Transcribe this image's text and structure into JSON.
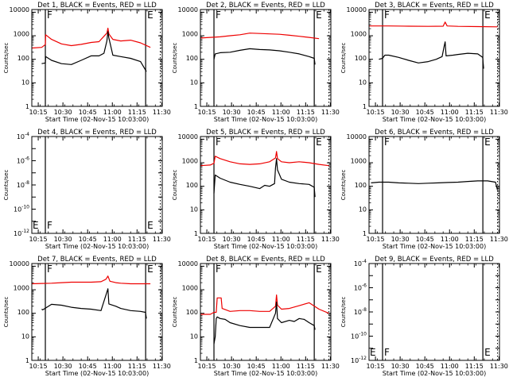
{
  "colors": {
    "events": "#000000",
    "lld": "#ee0000",
    "axis": "#000000"
  },
  "chart_data": [
    {
      "type": "line",
      "title": "Det 1, BLACK = Events, RED = LLD",
      "xlabel": "Start Time (02-Nov-15 10:03:00)",
      "ylabel": "Counts/sec",
      "yscale": "log",
      "ylim": [
        1,
        13000
      ],
      "yticks": [
        "1",
        "10",
        "100",
        "1000",
        "10000"
      ],
      "xlim": [
        10.1,
        11.42
      ],
      "xticks": [
        "10:15",
        "10:30",
        "10:45",
        "11:00",
        "11:15",
        "11:30"
      ],
      "markers": [
        {
          "x": 10.237,
          "label": "F",
          "style": "solid"
        },
        {
          "x": 11.252,
          "label": "E",
          "style": "solid"
        },
        {
          "x": 11.4,
          "label": "",
          "style": "dotted"
        }
      ],
      "series": [
        {
          "name": "RED = LLD",
          "x": [
            10.1,
            10.2,
            10.237,
            10.24,
            10.3,
            10.4,
            10.5,
            10.6,
            10.7,
            10.78,
            10.83,
            10.86,
            10.87,
            10.88,
            10.92,
            11.0,
            11.1,
            11.2,
            11.3
          ],
          "y": [
            300,
            320,
            420,
            1100,
            700,
            450,
            380,
            430,
            520,
            560,
            950,
            1300,
            2100,
            1200,
            700,
            600,
            650,
            500,
            320
          ]
        },
        {
          "name": "BLACK = Events",
          "x": [
            10.2,
            10.237,
            10.24,
            10.3,
            10.4,
            10.5,
            10.6,
            10.7,
            10.78,
            10.83,
            10.86,
            10.87,
            10.88,
            10.92,
            11.0,
            11.1,
            11.2,
            11.26
          ],
          "y": [
            65,
            70,
            130,
            90,
            65,
            60,
            90,
            140,
            140,
            180,
            600,
            1500,
            800,
            150,
            130,
            110,
            80,
            30
          ]
        }
      ]
    },
    {
      "type": "line",
      "title": "Det 2, BLACK = Events, RED = LLD",
      "xlabel": "Start Time (02-Nov-15 10:03:00)",
      "ylabel": "Counts/sec",
      "yscale": "log",
      "ylim": [
        1,
        13000
      ],
      "yticks": [
        "1",
        "10",
        "100",
        "1000",
        "10000"
      ],
      "xlim": [
        10.1,
        11.42
      ],
      "xticks": [
        "10:15",
        "10:30",
        "10:45",
        "11:00",
        "11:15",
        "11:30"
      ],
      "markers": [
        {
          "x": 10.237,
          "label": "F",
          "style": "solid"
        },
        {
          "x": 11.252,
          "label": "E",
          "style": "solid"
        },
        {
          "x": 11.4,
          "label": "",
          "style": "dotted"
        }
      ],
      "series": [
        {
          "name": "RED = LLD",
          "x": [
            10.1,
            10.2,
            10.3,
            10.4,
            10.5,
            10.6,
            10.7,
            10.8,
            10.9,
            11.0,
            11.1,
            11.2,
            11.3
          ],
          "y": [
            800,
            850,
            900,
            1000,
            1100,
            1300,
            1250,
            1200,
            1150,
            1050,
            950,
            850,
            750
          ]
        },
        {
          "name": "BLACK = Events",
          "x": [
            10.237,
            10.25,
            10.3,
            10.4,
            10.5,
            10.6,
            10.7,
            10.8,
            10.9,
            11.0,
            11.1,
            11.2,
            11.252,
            11.26
          ],
          "y": [
            100,
            170,
            190,
            200,
            240,
            280,
            260,
            250,
            230,
            200,
            170,
            130,
            110,
            60
          ]
        }
      ]
    },
    {
      "type": "line",
      "title": "Det 3, BLACK = Events, RED = LLD",
      "xlabel": "Start Time (02-Nov-15 10:03:00)",
      "ylabel": "Counts/sec",
      "yscale": "log",
      "ylim": [
        1,
        13000
      ],
      "yticks": [
        "1",
        "10",
        "100",
        "1000",
        "10000"
      ],
      "xlim": [
        10.1,
        11.42
      ],
      "xticks": [
        "10:15",
        "10:30",
        "10:45",
        "11:00",
        "11:15",
        "11:30"
      ],
      "markers": [
        {
          "x": 10.237,
          "label": "F",
          "style": "solid"
        },
        {
          "x": 11.252,
          "label": "E",
          "style": "solid"
        },
        {
          "x": 11.4,
          "label": "",
          "style": "dotted"
        }
      ],
      "series": [
        {
          "name": "RED = LLD",
          "x": [
            10.1,
            10.3,
            10.5,
            10.7,
            10.85,
            10.87,
            10.89,
            11.0,
            11.2,
            11.4
          ],
          "y": [
            2600,
            2600,
            2550,
            2500,
            2550,
            3800,
            2600,
            2500,
            2450,
            2400
          ]
        },
        {
          "name": "BLACK = Events",
          "x": [
            10.2,
            10.237,
            10.26,
            10.3,
            10.4,
            10.5,
            10.6,
            10.7,
            10.78,
            10.84,
            10.86,
            10.87,
            10.88,
            10.95,
            11.0,
            11.1,
            11.2,
            11.25,
            11.26
          ],
          "y": [
            100,
            110,
            150,
            150,
            120,
            90,
            70,
            80,
            100,
            130,
            350,
            550,
            140,
            150,
            160,
            180,
            170,
            120,
            40
          ]
        }
      ]
    },
    {
      "type": "line",
      "title": "Det 4, BLACK = Events, RED = LLD",
      "xlabel": "Start Time (02-Nov-15 10:03:00)",
      "ylabel": "Counts/sec",
      "yscale": "log",
      "ylim": [
        1e-12,
        0.0001
      ],
      "yticks": [
        "10^-12",
        "10^-10",
        "10^-8",
        "10^-6",
        "10^-4"
      ],
      "xlim": [
        10.1,
        11.42
      ],
      "xticks": [
        "10:15",
        "10:30",
        "10:45",
        "11:00",
        "11:15",
        "11:30"
      ],
      "markers": [
        {
          "x": 10.237,
          "label": "F",
          "style": "solid"
        },
        {
          "x": 11.252,
          "label": "E",
          "style": "solid"
        },
        {
          "x": 11.4,
          "label": "",
          "style": "dotted"
        }
      ],
      "corner_label": "E",
      "series": []
    },
    {
      "type": "line",
      "title": "Det 5, BLACK = Events, RED = LLD",
      "xlabel": "Start Time (02-Nov-15 10:03:00)",
      "ylabel": "Counts/sec",
      "yscale": "log",
      "ylim": [
        1,
        13000
      ],
      "yticks": [
        "1",
        "10",
        "100",
        "1000",
        "10000"
      ],
      "xlim": [
        10.1,
        11.42
      ],
      "xticks": [
        "10:15",
        "10:30",
        "10:45",
        "11:00",
        "11:15",
        "11:30"
      ],
      "markers": [
        {
          "x": 10.237,
          "label": "F",
          "style": "solid"
        },
        {
          "x": 11.252,
          "label": "E",
          "style": "solid"
        },
        {
          "x": 11.4,
          "label": "",
          "style": "dotted"
        }
      ],
      "series": [
        {
          "name": "RED = LLD",
          "x": [
            10.1,
            10.2,
            10.237,
            10.25,
            10.3,
            10.4,
            10.5,
            10.6,
            10.7,
            10.8,
            10.86,
            10.87,
            10.88,
            10.92,
            11.0,
            11.1,
            11.2,
            11.3,
            11.4
          ],
          "y": [
            750,
            800,
            950,
            1900,
            1500,
            1100,
            900,
            850,
            900,
            1100,
            1600,
            3000,
            1500,
            1100,
            1000,
            1100,
            1000,
            850,
            750
          ]
        },
        {
          "name": "BLACK = Events",
          "x": [
            10.237,
            10.25,
            10.3,
            10.4,
            10.5,
            10.6,
            10.7,
            10.75,
            10.8,
            10.85,
            10.86,
            10.87,
            10.88,
            10.92,
            11.0,
            11.1,
            11.2,
            11.252,
            11.26
          ],
          "y": [
            50,
            300,
            220,
            150,
            120,
            100,
            80,
            110,
            100,
            130,
            600,
            1500,
            500,
            200,
            150,
            130,
            120,
            90,
            35
          ]
        }
      ]
    },
    {
      "type": "line",
      "title": "Det 6, BLACK = Events, RED = LLD",
      "xlabel": "Start Time (02-Nov-15 10:03:00)",
      "ylabel": "Counts/sec",
      "yscale": "log",
      "ylim": [
        1,
        13000
      ],
      "yticks": [
        "1",
        "10",
        "100",
        "1000",
        "10000"
      ],
      "xlim": [
        10.1,
        11.42
      ],
      "xticks": [
        "10:15",
        "10:30",
        "10:45",
        "11:00",
        "11:15",
        "11:30"
      ],
      "markers": [
        {
          "x": 10.237,
          "label": "F",
          "style": "solid"
        },
        {
          "x": 11.252,
          "label": "E",
          "style": "solid"
        },
        {
          "x": 11.4,
          "label": "",
          "style": "dotted"
        }
      ],
      "series": [
        {
          "name": "BLACK = Events",
          "x": [
            10.12,
            10.2,
            10.3,
            10.4,
            10.5,
            10.6,
            10.7,
            10.8,
            10.9,
            11.0,
            11.1,
            11.2,
            11.3,
            11.38,
            11.4
          ],
          "y": [
            140,
            150,
            150,
            140,
            135,
            130,
            135,
            140,
            145,
            150,
            160,
            170,
            170,
            150,
            70
          ]
        }
      ]
    },
    {
      "type": "line",
      "title": "Det 7, BLACK = Events, RED = LLD",
      "xlabel": "Start Time (02-Nov-15 10:03:00)",
      "ylabel": "Counts/sec",
      "yscale": "log",
      "ylim": [
        1,
        13000
      ],
      "yticks": [
        "1",
        "10",
        "100",
        "1000",
        "10000"
      ],
      "xlim": [
        10.1,
        11.42
      ],
      "xticks": [
        "10:15",
        "10:30",
        "10:45",
        "11:00",
        "11:15",
        "11:30"
      ],
      "markers": [
        {
          "x": 10.237,
          "label": "F",
          "style": "solid"
        },
        {
          "x": 11.252,
          "label": "E",
          "style": "solid"
        },
        {
          "x": 11.4,
          "label": "",
          "style": "dotted"
        }
      ],
      "series": [
        {
          "name": "RED = LLD",
          "x": [
            10.1,
            10.2,
            10.3,
            10.4,
            10.5,
            10.6,
            10.7,
            10.8,
            10.85,
            10.87,
            10.89,
            10.95,
            11.0,
            11.1,
            11.2,
            11.3
          ],
          "y": [
            1800,
            1850,
            1900,
            2000,
            2100,
            2100,
            2100,
            2200,
            2800,
            3800,
            2300,
            2000,
            1900,
            1800,
            1800,
            1800
          ]
        },
        {
          "name": "BLACK = Events",
          "x": [
            10.2,
            10.21,
            10.3,
            10.4,
            10.5,
            10.6,
            10.7,
            10.8,
            10.86,
            10.87,
            10.88,
            10.95,
            11.0,
            11.1,
            11.2,
            11.25,
            11.26
          ],
          "y": [
            150,
            140,
            240,
            220,
            180,
            160,
            150,
            130,
            800,
            1100,
            250,
            200,
            160,
            130,
            120,
            110,
            60
          ]
        }
      ]
    },
    {
      "type": "line",
      "title": "Det 8, BLACK = Events, RED = LLD",
      "xlabel": "Start Time (02-Nov-15 10:03:00)",
      "ylabel": "Counts/sec",
      "yscale": "log",
      "ylim": [
        1,
        13000
      ],
      "yticks": [
        "1",
        "10",
        "100",
        "1000",
        "10000"
      ],
      "xlim": [
        10.1,
        11.42
      ],
      "xticks": [
        "10:15",
        "10:30",
        "10:45",
        "11:00",
        "11:15",
        "11:30"
      ],
      "markers": [
        {
          "x": 10.237,
          "label": "F",
          "style": "solid"
        },
        {
          "x": 11.252,
          "label": "E",
          "style": "solid"
        },
        {
          "x": 11.4,
          "label": "",
          "style": "dotted"
        }
      ],
      "series": [
        {
          "name": "RED = LLD",
          "x": [
            10.1,
            10.2,
            10.237,
            10.26,
            10.27,
            10.31,
            10.32,
            10.4,
            10.5,
            10.6,
            10.7,
            10.8,
            10.86,
            10.87,
            10.88,
            10.92,
            11.0,
            11.1,
            11.2,
            11.3,
            11.4
          ],
          "y": [
            90,
            90,
            110,
            110,
            450,
            450,
            160,
            120,
            130,
            130,
            120,
            120,
            200,
            600,
            220,
            150,
            160,
            210,
            280,
            150,
            100
          ]
        },
        {
          "name": "BLACK = Events",
          "x": [
            10.237,
            10.25,
            10.26,
            10.27,
            10.3,
            10.35,
            10.4,
            10.5,
            10.6,
            10.7,
            10.8,
            10.86,
            10.87,
            10.88,
            10.92,
            11.0,
            11.05,
            11.1,
            11.15,
            11.2,
            11.252,
            11.26
          ],
          "y": [
            5,
            10,
            60,
            70,
            60,
            55,
            40,
            30,
            25,
            25,
            25,
            100,
            300,
            60,
            40,
            50,
            45,
            60,
            55,
            40,
            30,
            20
          ]
        }
      ]
    },
    {
      "type": "line",
      "title": "Det 9, BLACK = Events, RED = LLD",
      "xlabel": "Start Time (02-Nov-15 10:03:00)",
      "ylabel": "Counts/sec",
      "yscale": "log",
      "ylim": [
        1e-12,
        0.0001
      ],
      "yticks": [
        "10^-12",
        "10^-10",
        "10^-8",
        "10^-6",
        "10^-4"
      ],
      "xlim": [
        10.1,
        11.42
      ],
      "xticks": [
        "10:15",
        "10:30",
        "10:45",
        "11:00",
        "11:15",
        "11:30"
      ],
      "markers": [
        {
          "x": 10.237,
          "label": "F",
          "style": "solid"
        },
        {
          "x": 11.252,
          "label": "E",
          "style": "solid"
        },
        {
          "x": 11.4,
          "label": "",
          "style": "dotted"
        }
      ],
      "corner_label": "E",
      "series": []
    }
  ]
}
